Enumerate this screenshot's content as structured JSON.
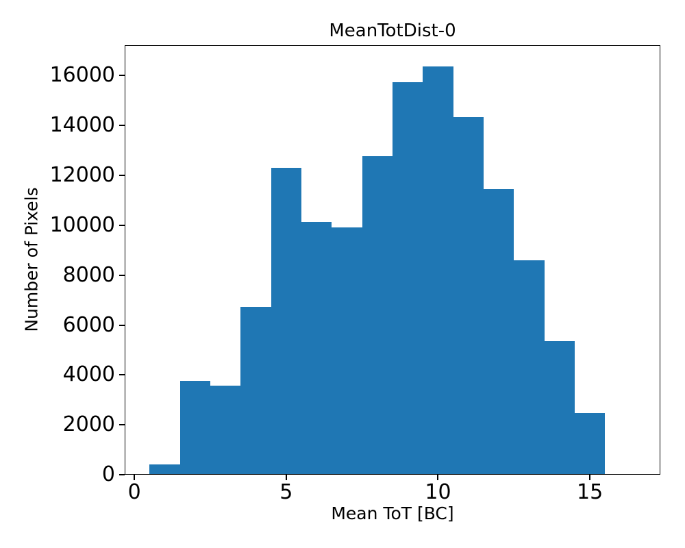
{
  "figure": {
    "background": "#ffffff"
  },
  "chart_data": {
    "type": "bar",
    "subtype": "histogram",
    "title": "MeanTotDist-0",
    "xlabel": "Mean ToT [BC]",
    "ylabel": "Number of Pixels",
    "bar_color": "#1f77b4",
    "bin_edges": [
      0.5,
      1.5,
      2.5,
      3.5,
      4.5,
      5.5,
      6.5,
      7.5,
      8.5,
      9.5,
      10.5,
      11.5,
      12.5,
      13.5,
      14.5,
      15.5
    ],
    "counts": [
      410,
      3750,
      3580,
      6730,
      12300,
      10140,
      9920,
      12780,
      15750,
      16380,
      14350,
      11440,
      8610,
      5360,
      2470
    ],
    "xlim": [
      -0.32,
      17.32
    ],
    "ylim": [
      0,
      17220
    ],
    "xticks": [
      0,
      5,
      10,
      15
    ],
    "yticks": [
      0,
      2000,
      4000,
      6000,
      8000,
      10000,
      12000,
      14000,
      16000
    ],
    "grid": false,
    "legend_position": "none"
  }
}
